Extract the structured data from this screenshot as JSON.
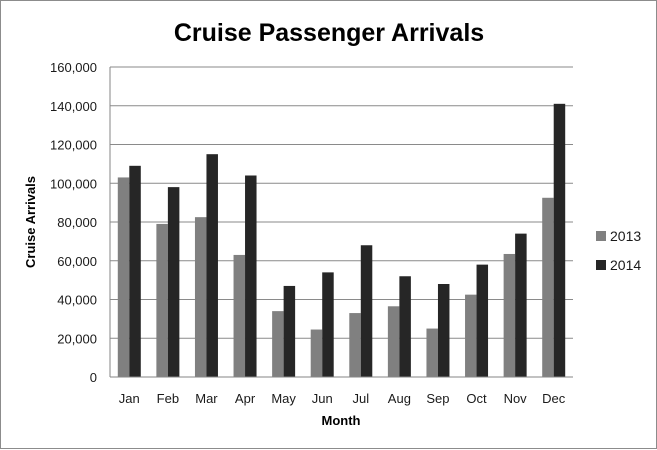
{
  "chart_data": {
    "type": "bar",
    "title": "Cruise Passenger Arrivals",
    "xlabel": "Month",
    "ylabel": "Cruise Arrivals",
    "categories": [
      "Jan",
      "Feb",
      "Mar",
      "Apr",
      "May",
      "Jun",
      "Jul",
      "Aug",
      "Sep",
      "Oct",
      "Nov",
      "Dec"
    ],
    "series": [
      {
        "name": "2013",
        "color": "#808080",
        "values": [
          103000,
          79000,
          82500,
          63000,
          34000,
          24500,
          33000,
          36500,
          25000,
          42500,
          63500,
          92500
        ]
      },
      {
        "name": "2014",
        "color": "#262626",
        "values": [
          109000,
          98000,
          115000,
          104000,
          47000,
          54000,
          68000,
          52000,
          48000,
          58000,
          74000,
          141000
        ]
      }
    ],
    "ylim": [
      0,
      160000
    ],
    "yticks": [
      0,
      20000,
      40000,
      60000,
      80000,
      100000,
      120000,
      140000,
      160000
    ],
    "ytick_labels": [
      "0",
      "20,000",
      "40,000",
      "60,000",
      "80,000",
      "100,000",
      "120,000",
      "140,000",
      "160,000"
    ],
    "grid": "horizontal",
    "legend_position": "right"
  }
}
